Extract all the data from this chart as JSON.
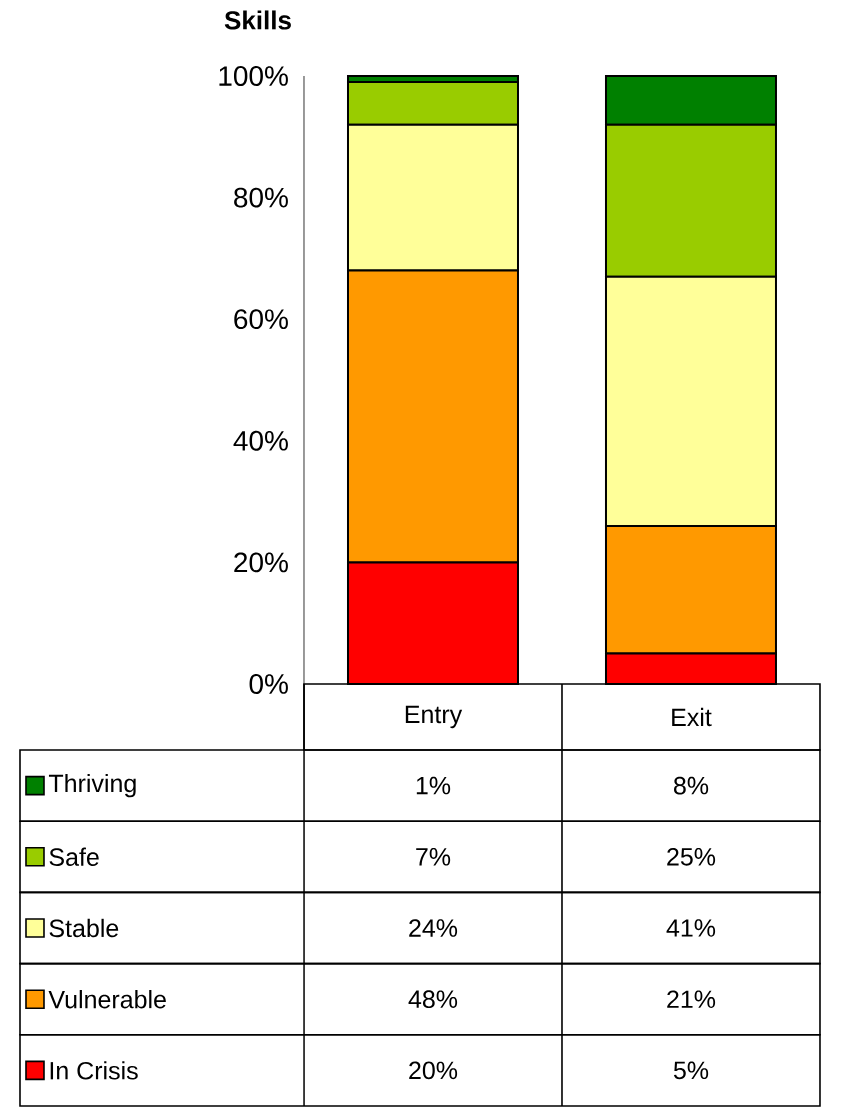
{
  "chart_data": {
    "type": "bar",
    "title": "Skills",
    "stacked": true,
    "categories": [
      "Entry",
      "Exit"
    ],
    "ylim": [
      0,
      100
    ],
    "yticks": [
      {
        "value": 0,
        "label": "0%"
      },
      {
        "value": 20,
        "label": "20%"
      },
      {
        "value": 40,
        "label": "40%"
      },
      {
        "value": 60,
        "label": "60%"
      },
      {
        "value": 80,
        "label": "80%"
      },
      {
        "value": 100,
        "label": "100%"
      }
    ],
    "legend": "bottom left",
    "grid": false,
    "series": [
      {
        "name": "In Crisis",
        "color": "#ff0000",
        "values": [
          20,
          5
        ],
        "value_labels": [
          "20%",
          "5%"
        ]
      },
      {
        "name": "Vulnerable",
        "color": "#ff9900",
        "values": [
          48,
          21
        ],
        "value_labels": [
          "48%",
          "21%"
        ]
      },
      {
        "name": "Stable",
        "color": "#ffff99",
        "values": [
          24,
          41
        ],
        "value_labels": [
          "24%",
          "41%"
        ]
      },
      {
        "name": "Safe",
        "color": "#99cc00",
        "values": [
          7,
          25
        ],
        "value_labels": [
          "7%",
          "25%"
        ]
      },
      {
        "name": "Thriving",
        "color": "#008000",
        "values": [
          1,
          8
        ],
        "value_labels": [
          "1%",
          "8%"
        ]
      }
    ]
  }
}
